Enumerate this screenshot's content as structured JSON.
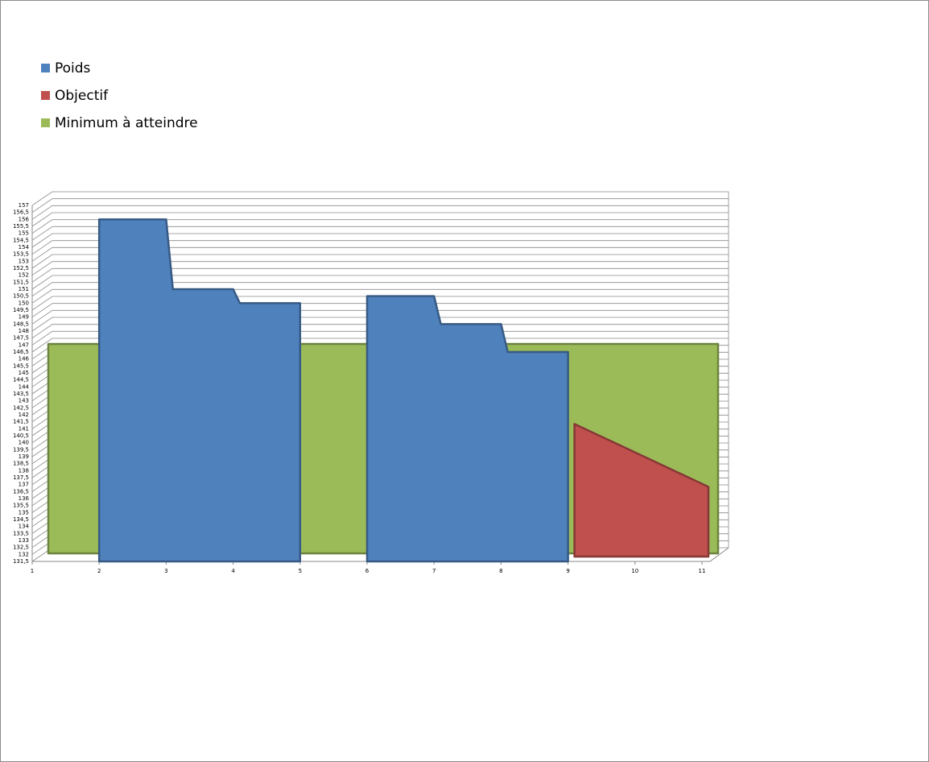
{
  "chart_data": {
    "type": "area",
    "series": [
      {
        "name": "Minimum à atteindre",
        "color": "#9bbb59",
        "x": [
          1,
          2,
          3,
          4,
          5,
          6,
          7,
          8,
          9,
          10,
          11
        ],
        "values": [
          146.5,
          146.5,
          146.5,
          146.5,
          146.5,
          146.5,
          146.5,
          146.5,
          146.5,
          146.5,
          146.5
        ]
      },
      {
        "name": "Objectif",
        "color": "#c0504d",
        "x": [
          9,
          11
        ],
        "values": [
          141,
          136.5
        ]
      },
      {
        "name": "Poids",
        "color": "#4f81bd",
        "x": [
          2,
          3,
          3.1,
          4,
          4.1,
          5,
          null,
          6,
          7,
          7.1,
          8,
          8.1,
          9
        ],
        "values": [
          156,
          156,
          151,
          151,
          150,
          150,
          null,
          150.5,
          150.5,
          148.5,
          148.5,
          146.5,
          146.5
        ]
      }
    ],
    "legend_order": [
      "Poids",
      "Objectif",
      "Minimum à atteindre"
    ],
    "xlim": [
      1,
      11
    ],
    "xticks": [
      1,
      2,
      3,
      4,
      5,
      6,
      7,
      8,
      9,
      10,
      11
    ],
    "ylim": [
      131.5,
      157
    ],
    "yticks": [
      {
        "value": 131.5,
        "label": "131,5"
      },
      132,
      {
        "value": 132.5,
        "label": "132,5"
      },
      133,
      {
        "value": 133.5,
        "label": "133,5"
      },
      134,
      {
        "value": 134.5,
        "label": "134,5"
      },
      135,
      {
        "value": 135.5,
        "label": "135,5"
      },
      136,
      {
        "value": 136.5,
        "label": "136,5"
      },
      137,
      {
        "value": 137.5,
        "label": "137,5"
      },
      138,
      {
        "value": 138.5,
        "label": "138,5"
      },
      139,
      {
        "value": 139.5,
        "label": "139,5"
      },
      140,
      {
        "value": 140.5,
        "label": "140,5"
      },
      141,
      {
        "value": 141.5,
        "label": "141,5"
      },
      142,
      {
        "value": 142.5,
        "label": "142,5"
      },
      143,
      {
        "value": 143.5,
        "label": "143,5"
      },
      144,
      {
        "value": 144.5,
        "label": "144,5"
      },
      145,
      {
        "value": 145.5,
        "label": "145,5"
      },
      146,
      {
        "value": 146.5,
        "label": "146,5"
      },
      147,
      {
        "value": 147.5,
        "label": "147,5"
      },
      148,
      {
        "value": 148.5,
        "label": "148,5"
      },
      149,
      {
        "value": 149.5,
        "label": "149,5"
      },
      150,
      {
        "value": 150.5,
        "label": "150,5"
      },
      151,
      {
        "value": 151.5,
        "label": "151,5"
      },
      152,
      {
        "value": 152.5,
        "label": "152,5"
      },
      153,
      {
        "value": 153.5,
        "label": "153,5"
      },
      154,
      {
        "value": 154.5,
        "label": "154,5"
      },
      155,
      {
        "value": 155.5,
        "label": "155,5"
      },
      156,
      {
        "value": 156.5,
        "label": "156,5"
      },
      157
    ],
    "grid": true
  }
}
